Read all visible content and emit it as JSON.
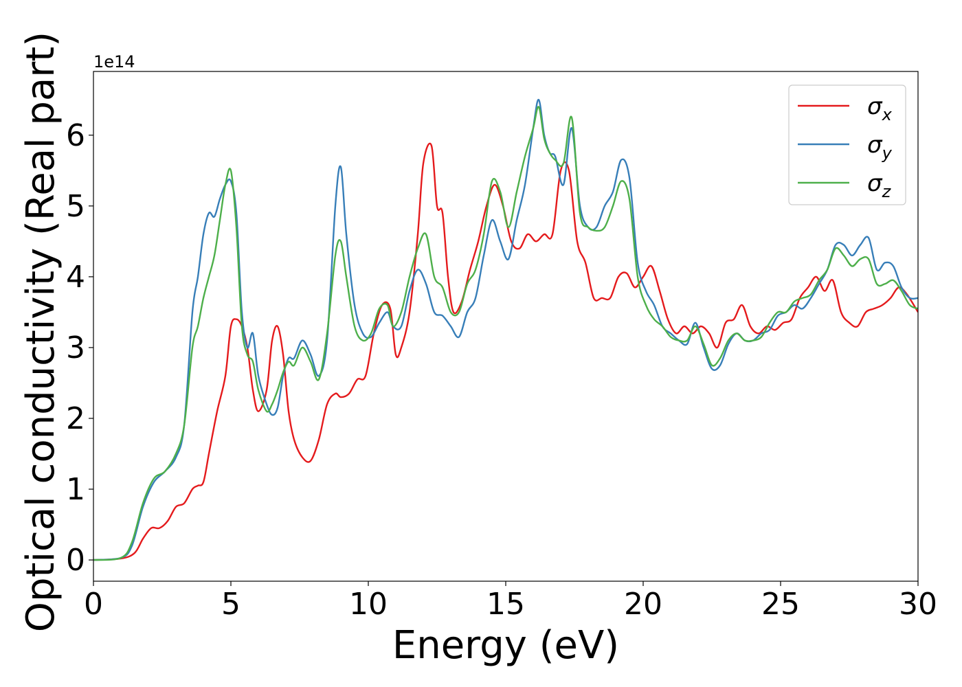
{
  "chart_data": {
    "type": "line",
    "xlabel": "Energy (eV)",
    "ylabel": "Optical conductivity (Real part)",
    "y_scale_label": "1e14",
    "xlim": [
      0,
      30
    ],
    "ylim": [
      -0.3,
      6.9
    ],
    "x_ticks": [
      "0",
      "5",
      "10",
      "15",
      "20",
      "25",
      "30"
    ],
    "y_ticks": [
      "0",
      "1",
      "2",
      "3",
      "4",
      "5",
      "6"
    ],
    "grid": false,
    "legend_position": "top-right",
    "legend": [
      {
        "base": "σ",
        "sub": "x",
        "color": "#e41a1c"
      },
      {
        "base": "σ",
        "sub": "y",
        "color": "#377eb8"
      },
      {
        "base": "σ",
        "sub": "z",
        "color": "#4daf4a"
      }
    ],
    "series": [
      {
        "color": "#e41a1c",
        "x": [
          0,
          1,
          1.5,
          1.8,
          2.1,
          2.4,
          2.7,
          3.0,
          3.3,
          3.6,
          3.8,
          4.0,
          4.2,
          4.5,
          4.8,
          5.0,
          5.2,
          5.4,
          5.6,
          5.8,
          6.0,
          6.3,
          6.5,
          6.7,
          6.9,
          7.1,
          7.3,
          7.6,
          7.9,
          8.2,
          8.5,
          8.8,
          9.0,
          9.3,
          9.6,
          9.9,
          10.2,
          10.5,
          10.8,
          11.0,
          11.2,
          11.5,
          11.8,
          12.0,
          12.3,
          12.5,
          12.7,
          12.9,
          13.1,
          13.4,
          13.7,
          14.0,
          14.3,
          14.6,
          14.9,
          15.2,
          15.5,
          15.8,
          16.1,
          16.4,
          16.7,
          17.0,
          17.3,
          17.6,
          17.9,
          18.2,
          18.5,
          18.8,
          19.1,
          19.4,
          19.7,
          20.0,
          20.3,
          20.6,
          20.9,
          21.2,
          21.5,
          21.8,
          22.1,
          22.4,
          22.7,
          23.0,
          23.3,
          23.6,
          23.9,
          24.2,
          24.5,
          24.8,
          25.1,
          25.4,
          25.7,
          26.0,
          26.3,
          26.6,
          26.9,
          27.2,
          27.5,
          27.8,
          28.1,
          28.4,
          28.7,
          29.0,
          29.3,
          29.6,
          30.0
        ],
        "values": [
          0,
          0.02,
          0.1,
          0.3,
          0.45,
          0.45,
          0.55,
          0.75,
          0.8,
          1.0,
          1.05,
          1.1,
          1.5,
          2.1,
          2.6,
          3.3,
          3.4,
          3.3,
          3.0,
          2.4,
          2.1,
          2.4,
          3.1,
          3.3,
          2.9,
          2.1,
          1.7,
          1.45,
          1.4,
          1.7,
          2.2,
          2.35,
          2.3,
          2.35,
          2.55,
          2.6,
          3.2,
          3.6,
          3.55,
          2.9,
          3.0,
          3.5,
          4.6,
          5.6,
          5.85,
          5.0,
          4.9,
          4.0,
          3.5,
          3.65,
          4.1,
          4.5,
          5.0,
          5.3,
          5.0,
          4.5,
          4.4,
          4.6,
          4.5,
          4.6,
          4.6,
          5.5,
          5.5,
          4.5,
          4.2,
          3.7,
          3.7,
          3.7,
          4.0,
          4.05,
          3.85,
          4.0,
          4.15,
          3.8,
          3.4,
          3.2,
          3.3,
          3.2,
          3.3,
          3.2,
          3.0,
          3.35,
          3.4,
          3.6,
          3.3,
          3.2,
          3.3,
          3.25,
          3.35,
          3.4,
          3.7,
          3.85,
          4.0,
          3.8,
          3.95,
          3.5,
          3.35,
          3.3,
          3.5,
          3.55,
          3.6,
          3.7,
          3.85,
          3.75,
          3.5
        ]
      },
      {
        "color": "#377eb8",
        "x": [
          0,
          1,
          1.4,
          1.8,
          2.2,
          2.6,
          3.0,
          3.3,
          3.6,
          3.8,
          4.0,
          4.2,
          4.4,
          4.6,
          4.8,
          5.0,
          5.2,
          5.4,
          5.6,
          5.8,
          6.0,
          6.3,
          6.5,
          6.7,
          6.9,
          7.1,
          7.3,
          7.6,
          7.9,
          8.2,
          8.5,
          8.8,
          9.0,
          9.2,
          9.5,
          9.8,
          10.1,
          10.4,
          10.7,
          10.9,
          11.2,
          11.5,
          11.8,
          12.1,
          12.4,
          12.7,
          13.0,
          13.3,
          13.6,
          13.9,
          14.2,
          14.5,
          14.8,
          15.1,
          15.4,
          15.7,
          16.0,
          16.2,
          16.4,
          16.6,
          16.8,
          17.1,
          17.4,
          17.7,
          18.0,
          18.3,
          18.6,
          18.9,
          19.2,
          19.5,
          19.8,
          20.1,
          20.4,
          20.7,
          21.0,
          21.3,
          21.6,
          21.9,
          22.2,
          22.5,
          22.8,
          23.1,
          23.4,
          23.7,
          24.0,
          24.3,
          24.6,
          24.9,
          25.2,
          25.5,
          25.8,
          26.1,
          26.4,
          26.7,
          27.0,
          27.3,
          27.6,
          27.9,
          28.2,
          28.5,
          28.8,
          29.1,
          29.4,
          29.7,
          30.0
        ],
        "values": [
          0,
          0.03,
          0.2,
          0.75,
          1.1,
          1.25,
          1.45,
          1.9,
          3.5,
          4.0,
          4.6,
          4.9,
          4.85,
          5.1,
          5.3,
          5.35,
          4.9,
          3.5,
          3.0,
          3.2,
          2.6,
          2.2,
          2.05,
          2.15,
          2.6,
          2.85,
          2.85,
          3.1,
          2.9,
          2.6,
          3.1,
          5.0,
          5.55,
          4.6,
          3.6,
          3.2,
          3.15,
          3.35,
          3.5,
          3.3,
          3.3,
          3.8,
          4.1,
          3.9,
          3.5,
          3.45,
          3.3,
          3.15,
          3.5,
          3.7,
          4.3,
          4.8,
          4.5,
          4.25,
          4.8,
          5.3,
          6.1,
          6.5,
          6.0,
          5.75,
          5.7,
          5.3,
          6.1,
          5.0,
          4.7,
          4.7,
          5.0,
          5.2,
          5.65,
          5.4,
          4.2,
          3.8,
          3.6,
          3.3,
          3.2,
          3.1,
          3.05,
          3.35,
          3.0,
          2.7,
          2.75,
          3.05,
          3.2,
          3.1,
          3.1,
          3.2,
          3.25,
          3.45,
          3.5,
          3.6,
          3.55,
          3.7,
          3.9,
          4.1,
          4.45,
          4.45,
          4.3,
          4.45,
          4.55,
          4.1,
          4.2,
          4.15,
          3.85,
          3.7,
          3.7
        ]
      },
      {
        "color": "#4daf4a",
        "x": [
          0,
          1,
          1.4,
          1.8,
          2.2,
          2.6,
          3.0,
          3.3,
          3.6,
          3.8,
          4.0,
          4.2,
          4.4,
          4.6,
          4.8,
          5.0,
          5.2,
          5.4,
          5.6,
          5.8,
          6.0,
          6.3,
          6.5,
          6.7,
          6.9,
          7.1,
          7.3,
          7.6,
          7.9,
          8.2,
          8.5,
          8.8,
          9.0,
          9.2,
          9.5,
          9.8,
          10.1,
          10.4,
          10.7,
          10.9,
          11.2,
          11.5,
          11.8,
          12.1,
          12.4,
          12.7,
          13.0,
          13.3,
          13.6,
          13.9,
          14.2,
          14.5,
          14.8,
          15.1,
          15.4,
          15.7,
          16.0,
          16.2,
          16.4,
          16.6,
          16.8,
          17.1,
          17.4,
          17.7,
          18.0,
          18.3,
          18.6,
          18.9,
          19.2,
          19.5,
          19.8,
          20.1,
          20.4,
          20.7,
          21.0,
          21.3,
          21.6,
          21.9,
          22.2,
          22.5,
          22.8,
          23.1,
          23.4,
          23.7,
          24.0,
          24.3,
          24.6,
          24.9,
          25.2,
          25.5,
          25.8,
          26.1,
          26.4,
          26.7,
          27.0,
          27.3,
          27.6,
          27.9,
          28.2,
          28.5,
          28.8,
          29.1,
          29.4,
          29.7,
          30.0
        ],
        "values": [
          0,
          0.03,
          0.25,
          0.8,
          1.15,
          1.25,
          1.5,
          1.9,
          3.0,
          3.3,
          3.7,
          4.0,
          4.3,
          4.8,
          5.3,
          5.5,
          4.7,
          3.3,
          2.9,
          2.8,
          2.4,
          2.1,
          2.2,
          2.4,
          2.65,
          2.8,
          2.75,
          3.0,
          2.8,
          2.55,
          3.2,
          4.3,
          4.5,
          4.0,
          3.3,
          3.1,
          3.2,
          3.55,
          3.6,
          3.3,
          3.5,
          4.0,
          4.4,
          4.6,
          4.0,
          3.85,
          3.5,
          3.5,
          3.9,
          4.1,
          4.6,
          5.35,
          5.2,
          4.7,
          5.2,
          5.7,
          6.1,
          6.4,
          5.95,
          5.75,
          5.65,
          5.6,
          6.25,
          4.9,
          4.7,
          4.65,
          4.7,
          5.0,
          5.35,
          5.1,
          4.0,
          3.6,
          3.4,
          3.3,
          3.15,
          3.1,
          3.1,
          3.3,
          3.05,
          2.75,
          2.85,
          3.1,
          3.2,
          3.1,
          3.1,
          3.15,
          3.35,
          3.5,
          3.5,
          3.65,
          3.7,
          3.75,
          3.95,
          4.1,
          4.4,
          4.3,
          4.15,
          4.25,
          4.25,
          3.9,
          3.9,
          3.95,
          3.8,
          3.6,
          3.55
        ]
      }
    ]
  }
}
